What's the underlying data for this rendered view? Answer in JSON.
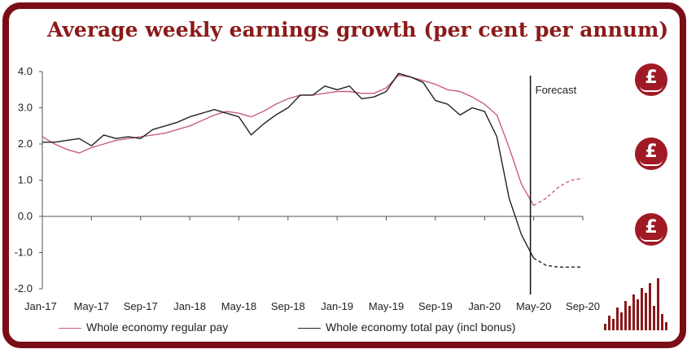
{
  "title": "Average weekly earnings growth (per cent per annum)",
  "forecast_label": "Forecast",
  "colors": {
    "regular": "#c9607a",
    "total": "#222222",
    "accent": "#8b1a1a"
  },
  "icons": [
    "pound-hand-icon",
    "pound-hand-icon",
    "pound-hand-icon",
    "bar-graphic-icon"
  ],
  "chart_data": {
    "type": "line",
    "title": "Average weekly earnings growth (per cent per annum)",
    "ylim": [
      -2.0,
      4.0
    ],
    "yticks": [
      "4.0",
      "3.0",
      "2.0",
      "1.0",
      "0.0",
      "-1.0",
      "-2.0"
    ],
    "ytick_values": [
      4.0,
      3.0,
      2.0,
      1.0,
      0.0,
      -1.0,
      -2.0
    ],
    "xlim": [
      0,
      44
    ],
    "xtick_labels": [
      "Jan-17",
      "May-17",
      "Sep-17",
      "Jan-18",
      "May-18",
      "Sep-18",
      "Jan-19",
      "May-19",
      "Sep-19",
      "Jan-20",
      "May-20",
      "Sep-20"
    ],
    "xtick_positions": [
      0,
      4,
      8,
      12,
      16,
      20,
      24,
      28,
      32,
      36,
      40,
      44
    ],
    "forecast_start": 40,
    "grid": false,
    "legend_position": "bottom",
    "series": [
      {
        "name": "Whole economy regular pay",
        "style": "solid",
        "x": [
          0,
          1,
          2,
          3,
          4,
          5,
          6,
          7,
          8,
          9,
          10,
          11,
          12,
          13,
          14,
          15,
          16,
          17,
          18,
          19,
          20,
          21,
          22,
          23,
          24,
          25,
          26,
          27,
          28,
          29,
          30,
          31,
          32,
          33,
          34,
          35,
          36,
          37,
          38,
          39,
          40
        ],
        "y": [
          2.2,
          2.0,
          1.85,
          1.75,
          1.9,
          2.0,
          2.1,
          2.15,
          2.2,
          2.25,
          2.3,
          2.4,
          2.5,
          2.65,
          2.8,
          2.9,
          2.85,
          2.75,
          2.9,
          3.1,
          3.25,
          3.35,
          3.35,
          3.4,
          3.45,
          3.45,
          3.4,
          3.4,
          3.55,
          3.9,
          3.85,
          3.75,
          3.65,
          3.5,
          3.45,
          3.3,
          3.1,
          2.8,
          1.9,
          0.9,
          0.3
        ]
      },
      {
        "name": "Whole economy regular pay forecast",
        "style": "dashed",
        "x": [
          40,
          41,
          42,
          43,
          44
        ],
        "y": [
          0.3,
          0.5,
          0.8,
          1.0,
          1.05
        ]
      },
      {
        "name": "Whole economy total pay (incl bonus)",
        "style": "solid",
        "x": [
          0,
          1,
          2,
          3,
          4,
          5,
          6,
          7,
          8,
          9,
          10,
          11,
          12,
          13,
          14,
          15,
          16,
          17,
          18,
          19,
          20,
          21,
          22,
          23,
          24,
          25,
          26,
          27,
          28,
          29,
          30,
          31,
          32,
          33,
          34,
          35,
          36,
          37,
          38,
          39,
          40
        ],
        "y": [
          2.05,
          2.05,
          2.1,
          2.15,
          1.95,
          2.25,
          2.15,
          2.2,
          2.15,
          2.4,
          2.5,
          2.6,
          2.75,
          2.85,
          2.95,
          2.85,
          2.75,
          2.25,
          2.55,
          2.8,
          3.0,
          3.35,
          3.35,
          3.6,
          3.5,
          3.6,
          3.25,
          3.3,
          3.45,
          3.95,
          3.85,
          3.7,
          3.2,
          3.1,
          2.8,
          3.0,
          2.9,
          2.2,
          0.5,
          -0.5,
          -1.15
        ]
      },
      {
        "name": "Whole economy total pay (incl bonus) forecast",
        "style": "dashed",
        "x": [
          40,
          41,
          42,
          43,
          44
        ],
        "y": [
          -1.15,
          -1.35,
          -1.4,
          -1.4,
          -1.4
        ]
      }
    ],
    "legend": [
      "Whole economy regular pay",
      "Whole economy total pay (incl bonus)"
    ]
  }
}
